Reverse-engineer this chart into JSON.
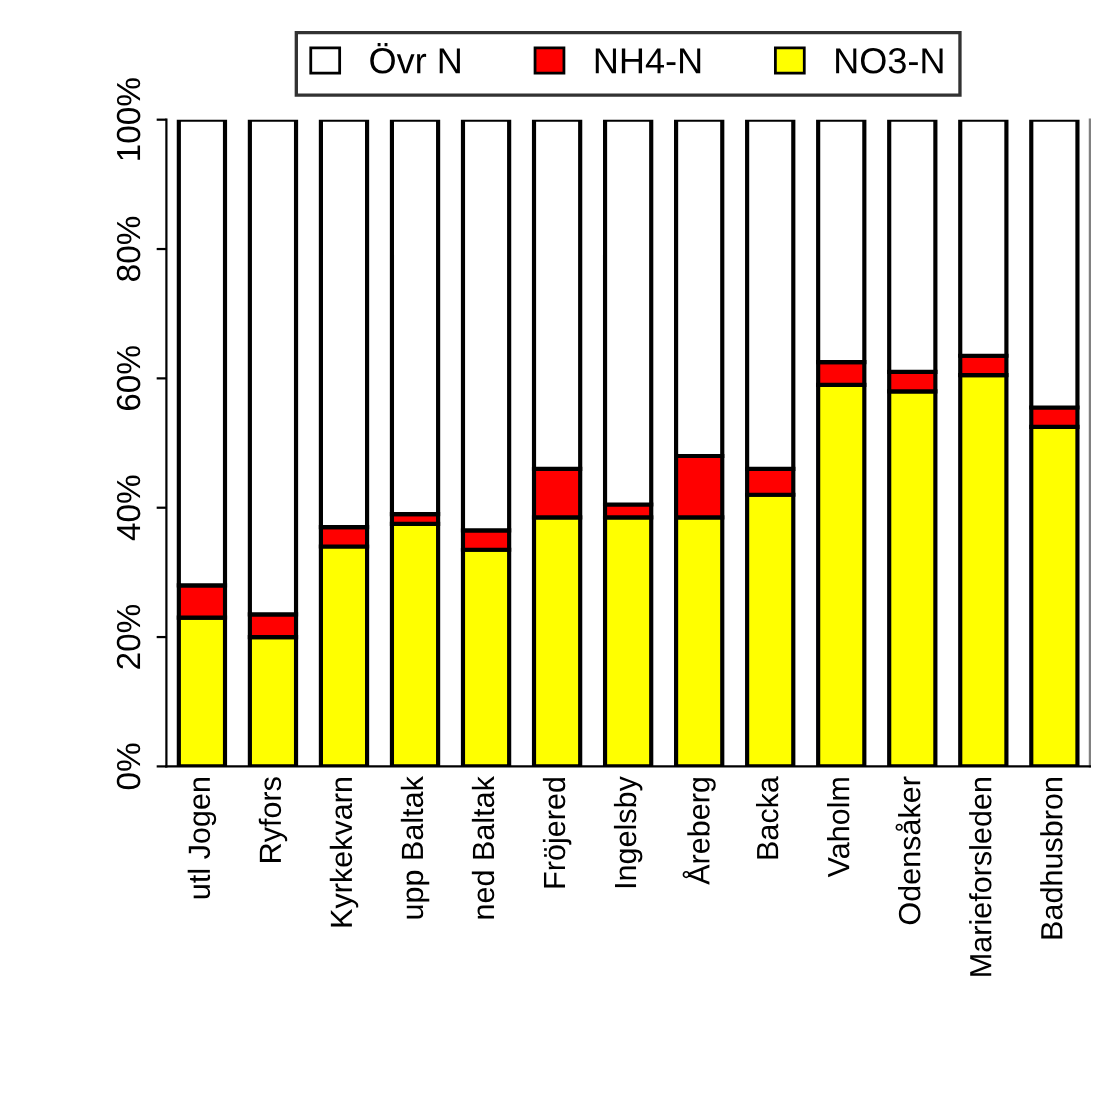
{
  "chart_data": {
    "type": "bar",
    "stacked": true,
    "categories": [
      "utl Jogen",
      "Ryfors",
      "Kyrkekvarn",
      "upp Baltak",
      "ned Baltak",
      "Fröjered",
      "Ingelsby",
      "Åreberg",
      "Backa",
      "Vaholm",
      "Odensåker",
      "Marieforsleden",
      "Badhusbron"
    ],
    "series": [
      {
        "name": "NO3-N",
        "color": "#ffff00",
        "values": [
          23,
          20,
          34,
          37.5,
          33.5,
          38.5,
          38.5,
          38.5,
          42,
          59,
          58,
          60.5,
          52.5
        ]
      },
      {
        "name": "NH4-N",
        "color": "#ff0000",
        "values": [
          5,
          3.5,
          3,
          1.5,
          3,
          7.5,
          2,
          9.5,
          4,
          3.5,
          3,
          3,
          3
        ]
      },
      {
        "name": "Övr N",
        "color": "#ffffff",
        "values": [
          72,
          76.5,
          63,
          61,
          63.5,
          54,
          59.5,
          52,
          54,
          37.5,
          39,
          36.5,
          44.5
        ]
      }
    ],
    "ylim": [
      0,
      100
    ],
    "yticks": [
      {
        "value": 0,
        "label": "0%"
      },
      {
        "value": 20,
        "label": "20%"
      },
      {
        "value": 40,
        "label": "40%"
      },
      {
        "value": 60,
        "label": "60%"
      },
      {
        "value": 80,
        "label": "80%"
      },
      {
        "value": 100,
        "label": "100%"
      }
    ],
    "grid": false,
    "legend": "top"
  }
}
